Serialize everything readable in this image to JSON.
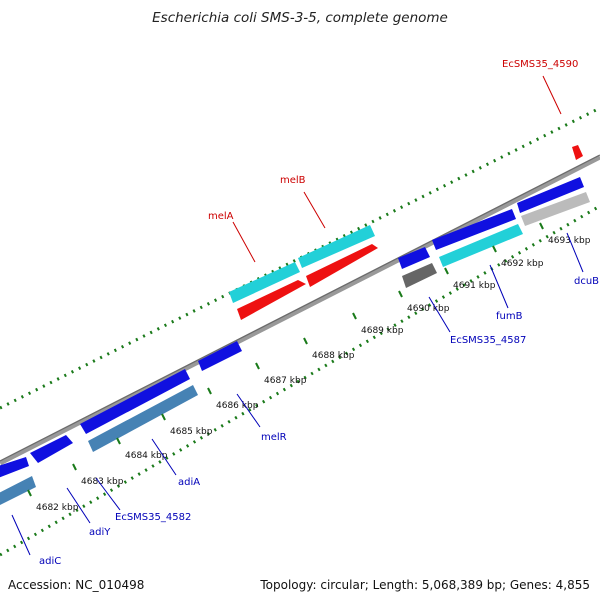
{
  "title": "Escherichia coli SMS-3-5, complete genome",
  "footer": {
    "accession": "Accession: NC_010498",
    "summary": "Topology: circular; Length: 5,068,389 bp; Genes: 4,855"
  },
  "colors": {
    "forward_cds": "#1010e0",
    "reverse_cds": "#4682b4",
    "forward_rna": "#ee1111",
    "reverse_rna": "#22d0d8",
    "pseudogene": "#666666",
    "other": "#bbbbbb",
    "backbone": "#888888",
    "gc_dots": "#1a7a1a",
    "label_blue": "#0000b8",
    "label_red": "#cc0000"
  },
  "ticks": [
    {
      "label": "4682 kbp"
    },
    {
      "label": "4683 kbp"
    },
    {
      "label": "4684 kbp"
    },
    {
      "label": "4685 kbp"
    },
    {
      "label": "4686 kbp"
    },
    {
      "label": "4687 kbp"
    },
    {
      "label": "4688 kbp"
    },
    {
      "label": "4689 kbp"
    },
    {
      "label": "4690 kbp"
    },
    {
      "label": "4691 kbp"
    },
    {
      "label": "4692 kbp"
    },
    {
      "label": "4693 kbp"
    }
  ],
  "gene_labels": [
    {
      "text": "adiC",
      "color": "blue"
    },
    {
      "text": "adiY",
      "color": "blue"
    },
    {
      "text": "EcSMS35_4582",
      "color": "blue"
    },
    {
      "text": "adiA",
      "color": "blue"
    },
    {
      "text": "melR",
      "color": "blue"
    },
    {
      "text": "melA",
      "color": "red"
    },
    {
      "text": "melB",
      "color": "red"
    },
    {
      "text": "EcSMS35_4587",
      "color": "blue"
    },
    {
      "text": "fumB",
      "color": "blue"
    },
    {
      "text": "dcuB",
      "color": "blue"
    },
    {
      "text": "EcSMS35_4590",
      "color": "red"
    }
  ]
}
